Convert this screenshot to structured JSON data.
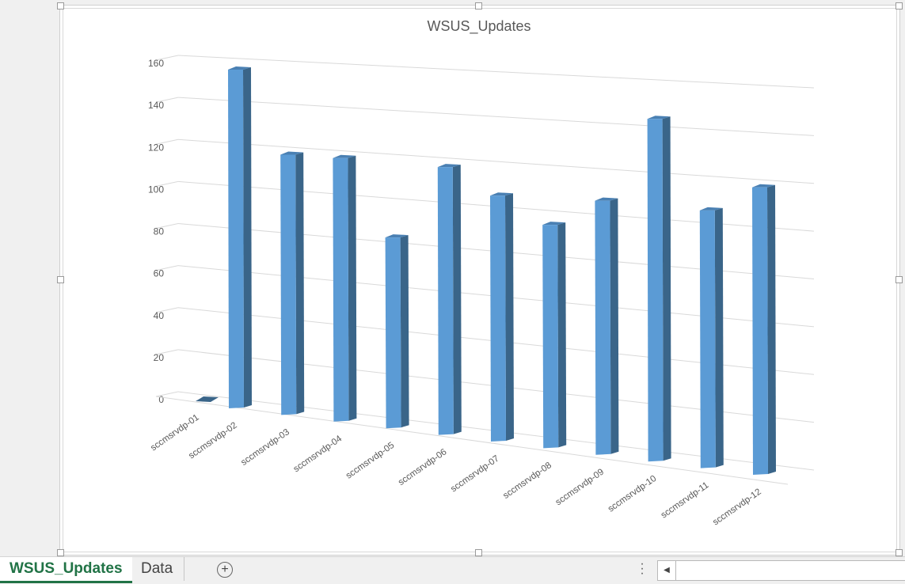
{
  "chart_data": {
    "type": "bar",
    "variant": "3d-column",
    "title": "WSUS_Updates",
    "categories": [
      "sccmsrvdp-01",
      "sccmsrvdp-02",
      "sccmsrvdp-03",
      "sccmsrvdp-04",
      "sccmsrvdp-05",
      "sccmsrvdp-06",
      "sccmsrvdp-07",
      "sccmsrvdp-08",
      "sccmsrvdp-09",
      "sccmsrvdp-10",
      "sccmsrvdp-11",
      "sccmsrvdp-12"
    ],
    "values": [
      0,
      157,
      119,
      119,
      85,
      118,
      107,
      96,
      108,
      144,
      107,
      118
    ],
    "ylim": [
      0,
      160
    ],
    "yticks": [
      "0",
      "20",
      "40",
      "60",
      "80",
      "100",
      "120",
      "140",
      "160"
    ],
    "grid": true,
    "legend": "none",
    "bar_color": "#5b9bd5",
    "bar_side_color": "#3a6589"
  },
  "sheet_tabs": {
    "active": "WSUS_Updates",
    "other": "Data",
    "add_icon": "plus-circle-icon",
    "more_icon": "vertical-ellipsis-icon",
    "scroll_left_icon": "caret-left-icon"
  },
  "colors": {
    "accent": "#217346"
  }
}
